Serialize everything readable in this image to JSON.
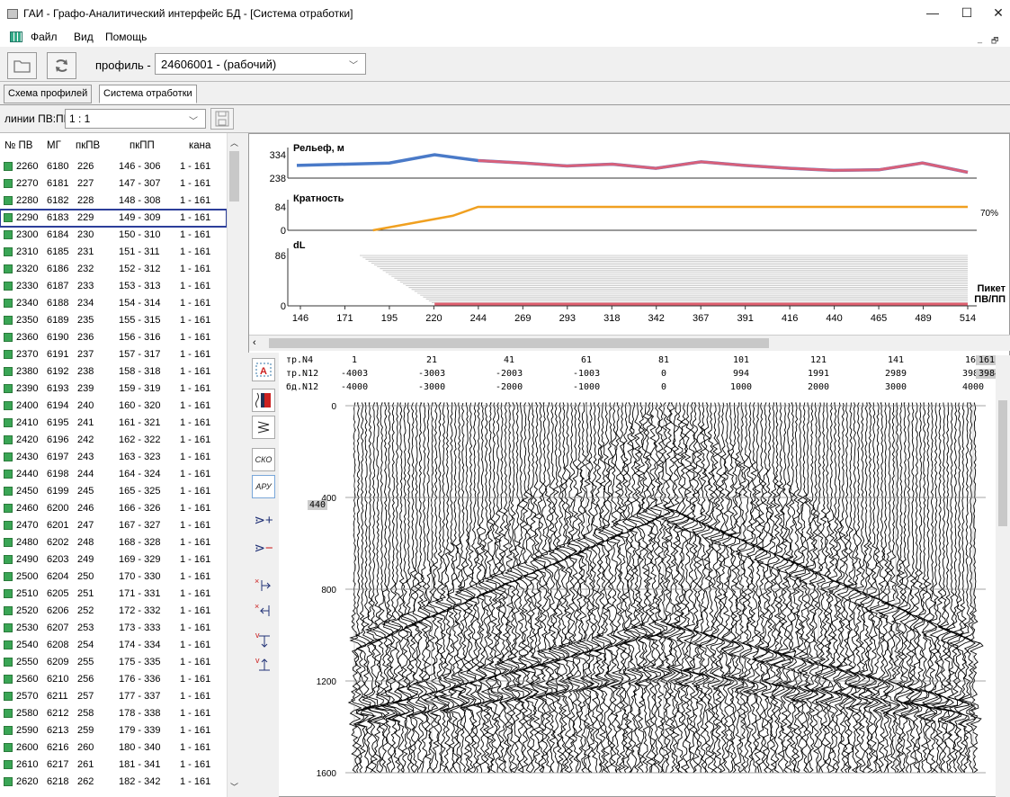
{
  "window": {
    "title": "ГАИ - Графо-Аналитический интерфейс БД - [Система отработки]",
    "minimize": "—",
    "maximize": "☐",
    "close": "✕"
  },
  "menu": {
    "items": [
      "Файл",
      "Вид",
      "Помощь"
    ],
    "mdi_min": "_",
    "mdi_restore": "🗗"
  },
  "toolbar": {
    "profile_label": "профиль -",
    "profile_value": "24606001 - (рабочий)"
  },
  "tabs": [
    "Схема профилей",
    "Система отработки"
  ],
  "lines": {
    "label": "линии ПВ:ПП",
    "value": "1 : 1"
  },
  "table": {
    "headers": [
      "№ ПВ",
      "МГ",
      "пкПВ",
      "пкПП",
      "кана"
    ],
    "rows": [
      [
        "2260",
        "6180",
        "226",
        "146 - 306",
        "1 - 161"
      ],
      [
        "2270",
        "6181",
        "227",
        "147 - 307",
        "1 - 161"
      ],
      [
        "2280",
        "6182",
        "228",
        "148 - 308",
        "1 - 161"
      ],
      [
        "2290",
        "6183",
        "229",
        "149 - 309",
        "1 - 161"
      ],
      [
        "2300",
        "6184",
        "230",
        "150 - 310",
        "1 - 161"
      ],
      [
        "2310",
        "6185",
        "231",
        "151 - 311",
        "1 - 161"
      ],
      [
        "2320",
        "6186",
        "232",
        "152 - 312",
        "1 - 161"
      ],
      [
        "2330",
        "6187",
        "233",
        "153 - 313",
        "1 - 161"
      ],
      [
        "2340",
        "6188",
        "234",
        "154 - 314",
        "1 - 161"
      ],
      [
        "2350",
        "6189",
        "235",
        "155 - 315",
        "1 - 161"
      ],
      [
        "2360",
        "6190",
        "236",
        "156 - 316",
        "1 - 161"
      ],
      [
        "2370",
        "6191",
        "237",
        "157 - 317",
        "1 - 161"
      ],
      [
        "2380",
        "6192",
        "238",
        "158 - 318",
        "1 - 161"
      ],
      [
        "2390",
        "6193",
        "239",
        "159 - 319",
        "1 - 161"
      ],
      [
        "2400",
        "6194",
        "240",
        "160 - 320",
        "1 - 161"
      ],
      [
        "2410",
        "6195",
        "241",
        "161 - 321",
        "1 - 161"
      ],
      [
        "2420",
        "6196",
        "242",
        "162 - 322",
        "1 - 161"
      ],
      [
        "2430",
        "6197",
        "243",
        "163 - 323",
        "1 - 161"
      ],
      [
        "2440",
        "6198",
        "244",
        "164 - 324",
        "1 - 161"
      ],
      [
        "2450",
        "6199",
        "245",
        "165 - 325",
        "1 - 161"
      ],
      [
        "2460",
        "6200",
        "246",
        "166 - 326",
        "1 - 161"
      ],
      [
        "2470",
        "6201",
        "247",
        "167 - 327",
        "1 - 161"
      ],
      [
        "2480",
        "6202",
        "248",
        "168 - 328",
        "1 - 161"
      ],
      [
        "2490",
        "6203",
        "249",
        "169 - 329",
        "1 - 161"
      ],
      [
        "2500",
        "6204",
        "250",
        "170 - 330",
        "1 - 161"
      ],
      [
        "2510",
        "6205",
        "251",
        "171 - 331",
        "1 - 161"
      ],
      [
        "2520",
        "6206",
        "252",
        "172 - 332",
        "1 - 161"
      ],
      [
        "2530",
        "6207",
        "253",
        "173 - 333",
        "1 - 161"
      ],
      [
        "2540",
        "6208",
        "254",
        "174 - 334",
        "1 - 161"
      ],
      [
        "2550",
        "6209",
        "255",
        "175 - 335",
        "1 - 161"
      ],
      [
        "2560",
        "6210",
        "256",
        "176 - 336",
        "1 - 161"
      ],
      [
        "2570",
        "6211",
        "257",
        "177 - 337",
        "1 - 161"
      ],
      [
        "2580",
        "6212",
        "258",
        "178 - 338",
        "1 - 161"
      ],
      [
        "2590",
        "6213",
        "259",
        "179 - 339",
        "1 - 161"
      ],
      [
        "2600",
        "6216",
        "260",
        "180 - 340",
        "1 - 161"
      ],
      [
        "2610",
        "6217",
        "261",
        "181 - 341",
        "1 - 161"
      ],
      [
        "2620",
        "6218",
        "262",
        "182 - 342",
        "1 - 161"
      ]
    ],
    "selected_row": 3,
    "row_color": "#3aa555"
  },
  "chart_data": [
    {
      "type": "line",
      "title": "Рельеф, м",
      "y_ticks": [
        "334",
        "238"
      ],
      "x": [
        195,
        220,
        244,
        269,
        293,
        318,
        342,
        367,
        391,
        416,
        440,
        465,
        489,
        514
      ],
      "y": [
        300,
        334,
        310,
        300,
        288,
        295,
        278,
        305,
        290,
        278,
        270,
        272,
        300,
        262
      ],
      "colors": [
        "#4a7ac8",
        "#d9607a"
      ]
    },
    {
      "type": "line",
      "title": "Кратность",
      "y_ticks": [
        "84",
        "0"
      ],
      "annotation": "70%",
      "x": [
        186,
        230,
        244,
        514
      ],
      "y": [
        0,
        52,
        84,
        84
      ],
      "color": "#f0a020"
    },
    {
      "type": "area",
      "title": "dL",
      "y_ticks": [
        "86",
        "0"
      ],
      "x_label": "Пикет ПВ/ПП",
      "x_ticks": [
        "146",
        "171",
        "195",
        "220",
        "244",
        "269",
        "293",
        "318",
        "342",
        "367",
        "391",
        "416",
        "440",
        "465",
        "489",
        "514"
      ]
    }
  ],
  "gather": {
    "header_labels": [
      "тр.N4",
      "тр.N12",
      "бд.N12"
    ],
    "tr_n4": [
      "1",
      "21",
      "41",
      "61",
      "81",
      "101",
      "121",
      "141",
      "161"
    ],
    "tr_n12": [
      "-4003",
      "-3003",
      "-2003",
      "-1003",
      "0",
      "994",
      "1991",
      "2989",
      "3984"
    ],
    "bd_n12": [
      "-4000",
      "-3000",
      "-2000",
      "-1000",
      "0",
      "1000",
      "2000",
      "3000",
      "4000"
    ],
    "corner": [
      "161",
      "3984"
    ],
    "time_ticks": [
      "0",
      "400",
      "800",
      "1200",
      "1600"
    ],
    "cursor_value": "440"
  },
  "tools": {
    "sko": "СКО",
    "aru": "АРУ"
  },
  "colors": {
    "selection": "#2c3e9a",
    "relief_blue": "#4a7ac8",
    "relief_pink": "#d9607a",
    "fold": "#f0a020"
  }
}
